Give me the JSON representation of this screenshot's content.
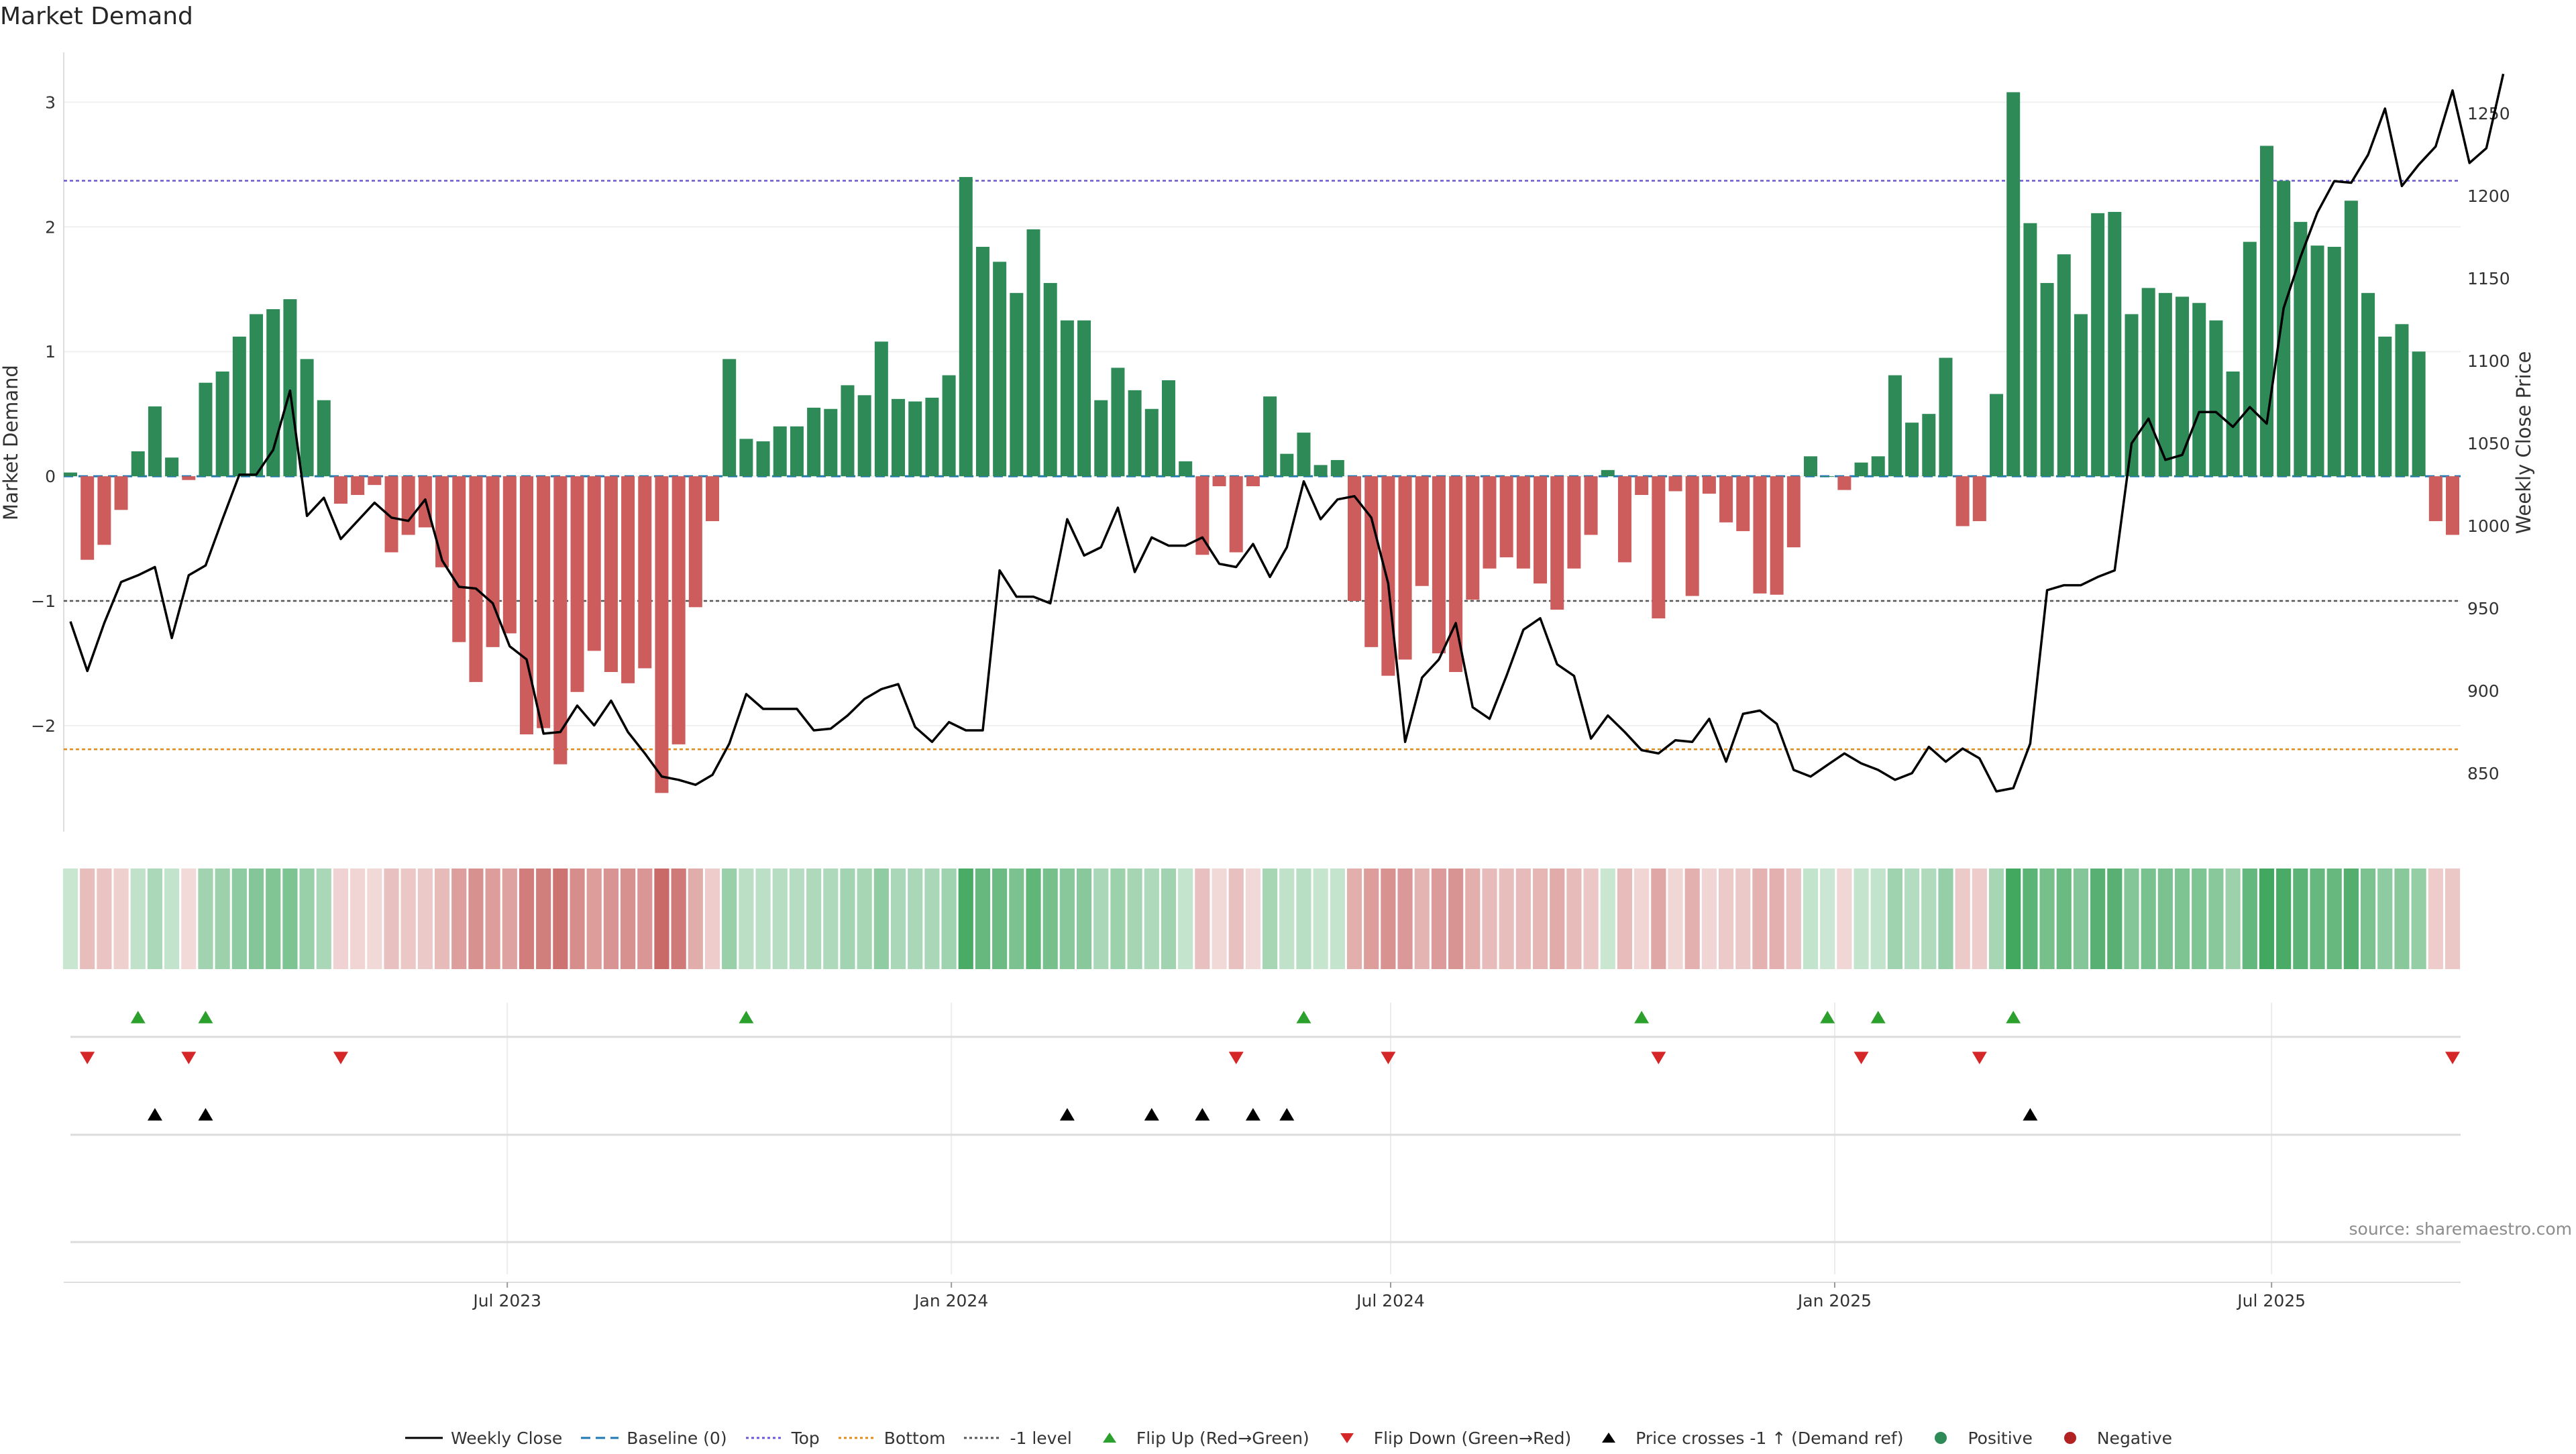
{
  "title": "Market Demand",
  "source": "source: sharemaestro.com",
  "colors": {
    "positive": "#2e8b57",
    "negative": "#cd5c5c",
    "price": "#000000",
    "baseline": "#1f77b4",
    "top": "#6a5acd",
    "bottom": "#e08b1c",
    "minus1": "#555555",
    "flip_up": "#2ca02c",
    "flip_down": "#d62728",
    "cross": "#000000"
  },
  "legend": [
    {
      "label": "Weekly Close",
      "kind": "line",
      "color": "#000000",
      "dash": ""
    },
    {
      "label": "Baseline (0)",
      "kind": "line",
      "color": "#1f77b4",
      "dash": "14,8"
    },
    {
      "label": "Top",
      "kind": "line",
      "color": "#6a5acd",
      "dash": "4,4"
    },
    {
      "label": "Bottom",
      "kind": "line",
      "color": "#e08b1c",
      "dash": "4,4"
    },
    {
      "label": "-1 level",
      "kind": "line",
      "color": "#555555",
      "dash": "4,4"
    },
    {
      "label": "Flip Up (Red→Green)",
      "kind": "tri-up",
      "color": "#2ca02c"
    },
    {
      "label": "Flip Down (Green→Red)",
      "kind": "tri-down",
      "color": "#d62728"
    },
    {
      "label": "Price crosses -1 ↑ (Demand ref)",
      "kind": "tri-up",
      "color": "#000000"
    },
    {
      "label": "Positive",
      "kind": "dot",
      "color": "#2e8b57"
    },
    {
      "label": "Negative",
      "kind": "dot",
      "color": "#b22222"
    }
  ],
  "chart_data": {
    "type": "bar",
    "start_date": "2023-01-01",
    "interval_days": 7,
    "x_ticks": [
      {
        "label": "Jul 2023",
        "date": "2023-07-01"
      },
      {
        "label": "Jan 2024",
        "date": "2024-01-01"
      },
      {
        "label": "Jul 2024",
        "date": "2024-07-01"
      },
      {
        "label": "Jan 2025",
        "date": "2025-01-01"
      },
      {
        "label": "Jul 2025",
        "date": "2025-07-01"
      }
    ],
    "ylabel": "Market Demand",
    "ylabel_right": "Weekly Close Price",
    "ylim": [
      -2.85,
      3.4
    ],
    "ylim_right": [
      814.6,
      1287.1
    ],
    "yticks_left": [
      {
        "value": 3,
        "label": "3"
      },
      {
        "value": 2,
        "label": "2"
      },
      {
        "value": 1,
        "label": "1"
      },
      {
        "value": 0,
        "label": "0"
      },
      {
        "value": -1,
        "label": "−1"
      },
      {
        "value": -2,
        "label": "−2"
      }
    ],
    "yticks_right": [
      {
        "value": 1250,
        "label": "1250"
      },
      {
        "value": 1200,
        "label": "1200"
      },
      {
        "value": 1150,
        "label": "1150"
      },
      {
        "value": 1100,
        "label": "1100"
      },
      {
        "value": 1050,
        "label": "1050"
      },
      {
        "value": 1000,
        "label": "1000"
      },
      {
        "value": 950,
        "label": "950"
      },
      {
        "value": 900,
        "label": "900"
      },
      {
        "value": 850,
        "label": "850"
      }
    ],
    "levels": {
      "baseline": 0,
      "top": 2.37,
      "bottom": -2.19,
      "minus1": -1
    },
    "demand": [
      0.03,
      -0.67,
      -0.55,
      -0.27,
      0.2,
      0.56,
      0.15,
      -0.03,
      0.75,
      0.84,
      1.12,
      1.3,
      1.34,
      1.42,
      0.94,
      0.61,
      -0.22,
      -0.15,
      -0.07,
      -0.61,
      -0.47,
      -0.41,
      -0.73,
      -1.33,
      -1.65,
      -1.37,
      -1.26,
      -2.07,
      -2.02,
      -2.31,
      -1.73,
      -1.4,
      -1.57,
      -1.66,
      -1.54,
      -2.54,
      -2.15,
      -1.05,
      -0.36,
      0.94,
      0.3,
      0.28,
      0.4,
      0.4,
      0.55,
      0.54,
      0.73,
      0.65,
      1.08,
      0.62,
      0.6,
      0.63,
      0.81,
      2.4,
      1.84,
      1.72,
      1.47,
      1.98,
      1.55,
      1.25,
      1.25,
      0.61,
      0.87,
      0.69,
      0.54,
      0.77,
      0.12,
      -0.63,
      -0.08,
      -0.61,
      -0.08,
      0.64,
      0.18,
      0.35,
      0.09,
      0.13,
      -1.0,
      -1.37,
      -1.6,
      -1.47,
      -0.88,
      -1.42,
      -1.57,
      -0.99,
      -0.74,
      -0.65,
      -0.74,
      -0.86,
      -1.07,
      -0.74,
      -0.47,
      0.05,
      -0.69,
      -0.15,
      -1.14,
      -0.12,
      -0.96,
      -0.14,
      -0.37,
      -0.44,
      -0.94,
      -0.95,
      -0.57,
      0.16,
      0.0,
      -0.11,
      0.11,
      0.16,
      0.81,
      0.43,
      0.5,
      0.95,
      -0.4,
      -0.36,
      0.66,
      3.08,
      2.03,
      1.55,
      1.78,
      1.3,
      2.11,
      2.12,
      1.3,
      1.51,
      1.47,
      1.44,
      1.39,
      1.25,
      0.84,
      1.88,
      2.65,
      2.37,
      2.04,
      1.85,
      1.84,
      2.21,
      1.47,
      1.12,
      1.22,
      1.0,
      -0.36,
      -0.47
    ],
    "price": [
      942,
      912,
      941,
      966,
      970,
      975,
      932,
      970,
      976,
      1004,
      1031,
      1031,
      1046,
      1082,
      1006,
      1017,
      992,
      1003,
      1014,
      1005,
      1003,
      1016,
      979,
      963,
      962,
      953,
      927,
      919,
      874,
      875,
      891,
      879,
      894,
      875,
      862,
      848,
      846,
      843,
      849,
      868,
      898,
      889,
      889,
      889,
      876,
      877,
      885,
      895,
      901,
      904,
      878,
      869,
      881,
      876,
      876,
      973,
      957,
      957,
      953,
      1004,
      982,
      987,
      1011,
      972,
      993,
      988,
      988,
      993,
      977,
      975,
      989,
      969,
      987,
      1027,
      1004,
      1016,
      1018,
      1005,
      965,
      869,
      908,
      919,
      941,
      890,
      883,
      909,
      937,
      944,
      916,
      909,
      871,
      885,
      875,
      864,
      862,
      870,
      869,
      883,
      857,
      886,
      888,
      880,
      852,
      848,
      855,
      862,
      856,
      852,
      846,
      850,
      866,
      857,
      865,
      859,
      839,
      841,
      868,
      961,
      964,
      964,
      969,
      973,
      1050,
      1065,
      1040,
      1043,
      1069,
      1069,
      1060,
      1072,
      1062,
      1132,
      1163,
      1190,
      1209,
      1208,
      1225,
      1253,
      1206,
      1219,
      1230,
      1264,
      1220,
      1229,
      1274
    ],
    "flip_up_idx": [
      4,
      8,
      40,
      73,
      93,
      104,
      107,
      115
    ],
    "flip_down_idx": [
      1,
      7,
      16,
      69,
      78,
      94,
      106,
      113,
      141
    ],
    "cross_idx": [
      5,
      8,
      59,
      64,
      67,
      70,
      72,
      116
    ],
    "heat_scale": {
      "positive_max": 2.5,
      "negative_max": 2.5
    }
  }
}
